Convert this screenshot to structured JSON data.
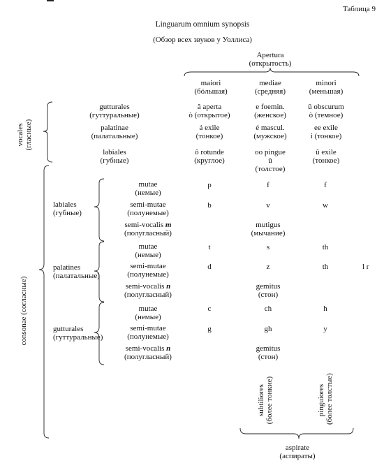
{
  "table_label": "Таблица 9",
  "title": "Linguarum omnium synopsis",
  "subtitle": "(Обзор всех звуков у Уоллиса)",
  "apertura": {
    "la": "Apertura",
    "ru": "(открытость)"
  },
  "columns": [
    {
      "la": "maiori",
      "ru": "(бóльшая)"
    },
    {
      "la": "mediae",
      "ru": "(средняя)"
    },
    {
      "la": "minori",
      "ru": "(меньшая)"
    }
  ],
  "vocales": {
    "label": "vocales",
    "label_ru": "(гласные)",
    "rows": [
      {
        "la": "gutturales",
        "ru": "(гуттуральные)",
        "cells": [
          [
            "â aperta",
            "ò (открытое)"
          ],
          [
            "e foemin.",
            "(женское)"
          ],
          [
            "ŭ obscurum",
            "ò (темное)"
          ]
        ]
      },
      {
        "la": "palatinae",
        "ru": "(палатальные)",
        "cells": [
          [
            "á exile",
            "(тонкое)"
          ],
          [
            "é mascul.",
            "(мужское)"
          ],
          [
            "ee exile",
            "i (тонкое)"
          ]
        ]
      },
      {
        "la": "labiales",
        "ru": "(губные)",
        "cells": [
          [
            "ô rotunde",
            "(круглое)"
          ],
          [
            "oo pingue",
            "û"
          ],
          [
            "û exile",
            "(тонкое)"
          ]
        ],
        "extra_mid": "(толстое)"
      }
    ]
  },
  "consonae": {
    "label": "consonae (согласные)",
    "groups": [
      {
        "la": "labiales",
        "ru": "(губные)",
        "rows": [
          {
            "la": "mutae",
            "ru": "(немые)",
            "cells": [
              "p",
              "f",
              "f"
            ]
          },
          {
            "la": "semi-mutae",
            "ru": "(полунемые)",
            "cells": [
              "b",
              "v",
              "w"
            ]
          },
          {
            "la": "semi-vocalis",
            "letter": "m",
            "ru": "(полугласный)",
            "span": "mutigus",
            "span_ru": "(мычание)"
          }
        ]
      },
      {
        "la": "palatines",
        "ru": "(палатальные)",
        "rows": [
          {
            "la": "mutae",
            "ru": "(немые)",
            "cells": [
              "t",
              "s",
              "th"
            ]
          },
          {
            "la": "semi-mutae",
            "ru": "(полунемые)",
            "cells": [
              "d",
              "z",
              "th"
            ],
            "extra": "l r"
          },
          {
            "la": "semi-vocalis",
            "letter": "n",
            "ru": "(полугласный)",
            "span": "gemitus",
            "span_ru": "(стон)"
          }
        ]
      },
      {
        "la": "gutturales",
        "ru": "(гуттуральные)",
        "rows": [
          {
            "la": "mutae",
            "ru": "(немые)",
            "cells": [
              "c",
              "ch",
              "h"
            ]
          },
          {
            "la": "semi-mutae",
            "ru": "(полунемые)",
            "cells": [
              "g",
              "gh",
              "y"
            ]
          },
          {
            "la": "semi-vocalis",
            "letter": "n",
            "ru": "(полугласный)",
            "span": "gemitus",
            "span_ru": "(стон)"
          }
        ]
      }
    ]
  },
  "subtiliores": {
    "la": "subtiliores",
    "ru": "(более тонкие)"
  },
  "pinguiores": {
    "la": "pinguiores",
    "ru": "(более толстые)"
  },
  "aspiratae": {
    "la": "aspirate",
    "ru": "(аспираты)"
  }
}
